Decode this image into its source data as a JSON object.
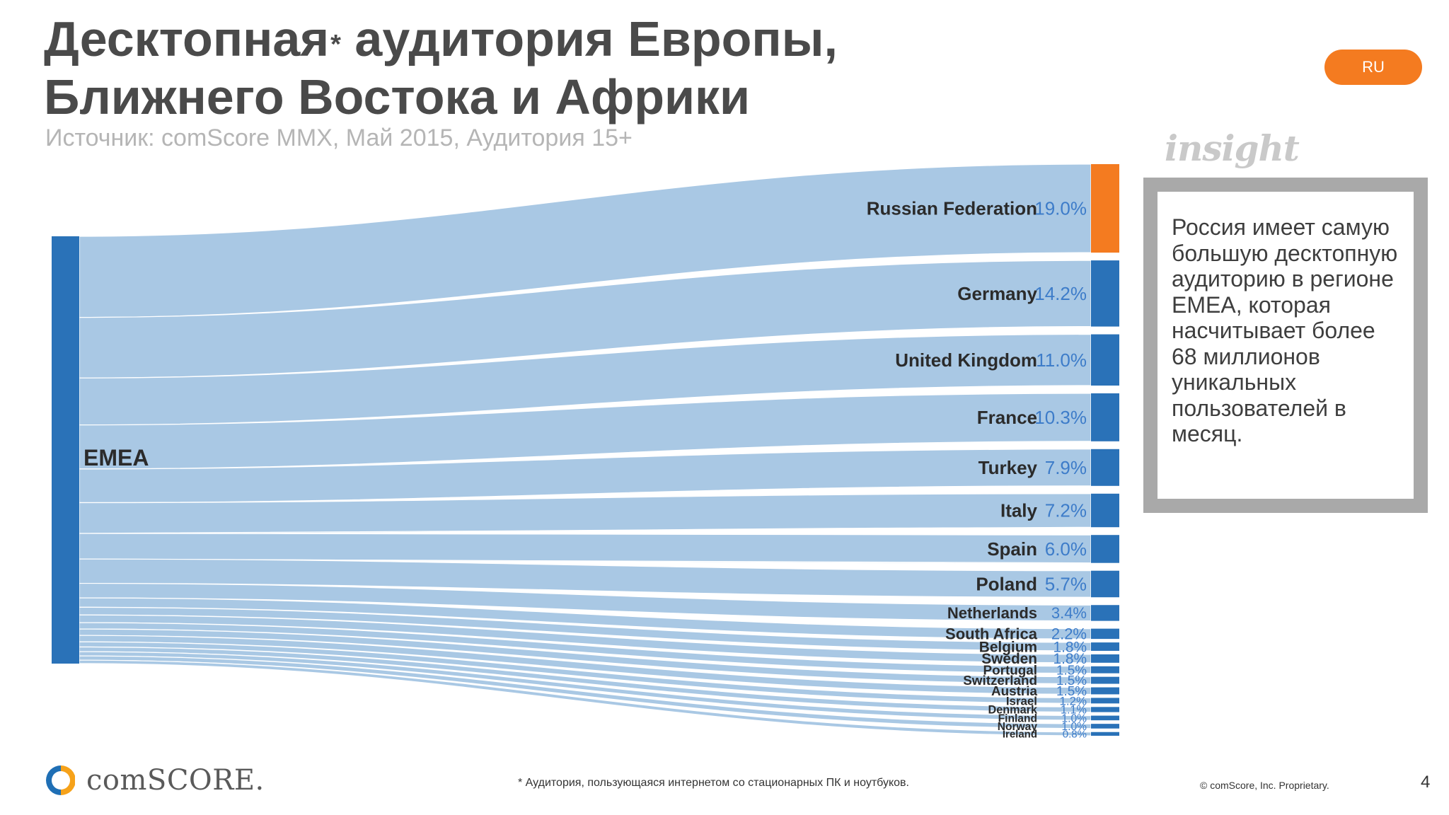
{
  "header": {
    "title_line1": "Десктопная",
    "title_star": "*",
    "title_line1_rest": " аудитория Европы,",
    "title_line2": "Ближнего Востока и Африки",
    "subtitle": "Источник: comScore MMX, Май 2015, Аудитория 15+",
    "lang_badge": "RU"
  },
  "insight": {
    "label": "insight",
    "text": "Россия имеет самую большую десктопную аудиторию в регионе EMEA, которая насчитывает более 68 миллионов уникальных пользователей в месяц."
  },
  "footer": {
    "logo_text": "comSCORE.",
    "footnote": "* Аудитория, пользующаяся интернетом со стационарных ПК и ноутбуков.",
    "copyright": "© comScore, Inc. Proprietary.",
    "page_number": "4"
  },
  "colors": {
    "source_bar": "#2a72b8",
    "flow": "#a9c8e4",
    "highlight": "#f47b20",
    "value_label": "#3d7cc9",
    "country_label": "#2b2b2b"
  },
  "chart_data": {
    "type": "sankey",
    "source": "EMEA",
    "highlight_category": "Russian Federation",
    "categories": [
      "Russian Federation",
      "Germany",
      "United Kingdom",
      "France",
      "Turkey",
      "Italy",
      "Spain",
      "Poland",
      "Netherlands",
      "South Africa",
      "Belgium",
      "Sweden",
      "Portugal",
      "Switzerland",
      "Austria",
      "Israel",
      "Denmark",
      "Finland",
      "Norway",
      "Ireland"
    ],
    "values": [
      19.0,
      14.2,
      11.0,
      10.3,
      7.9,
      7.2,
      6.0,
      5.7,
      3.4,
      2.2,
      1.8,
      1.8,
      1.5,
      1.5,
      1.5,
      1.2,
      1.1,
      1.0,
      1.0,
      0.8
    ],
    "value_labels": [
      "19.0%",
      "14.2%",
      "11.0%",
      "10.3%",
      "7.9%",
      "7.2%",
      "6.0%",
      "5.7%",
      "3.4%",
      "2.2%",
      "1.8%",
      "1.8%",
      "1.5%",
      "1.5%",
      "1.5%",
      "1.2%",
      "1.1%",
      "1.0%",
      "1.0%",
      "0.8%"
    ]
  }
}
